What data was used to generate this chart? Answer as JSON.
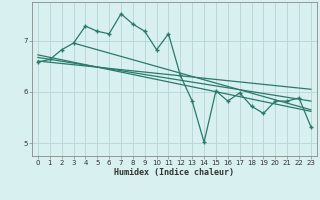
{
  "xlabel": "Humidex (Indice chaleur)",
  "bg_color": "#d8f0f0",
  "grid_color": "#b8d4d4",
  "line_color": "#2a7a6a",
  "xlim": [
    -0.5,
    23.5
  ],
  "ylim": [
    4.75,
    7.75
  ],
  "xticks": [
    0,
    1,
    2,
    3,
    4,
    5,
    6,
    7,
    8,
    9,
    10,
    11,
    12,
    13,
    14,
    15,
    16,
    17,
    18,
    19,
    20,
    21,
    22,
    23
  ],
  "yticks": [
    5,
    6,
    7
  ],
  "zigzag_x": [
    0,
    1,
    2,
    3,
    4,
    5,
    6,
    7,
    8,
    9,
    10,
    11,
    12,
    13,
    14,
    15,
    16,
    17,
    18,
    19,
    20,
    21,
    22,
    23
  ],
  "zigzag_y": [
    6.58,
    6.63,
    6.82,
    6.95,
    7.28,
    7.18,
    7.13,
    7.52,
    7.32,
    7.18,
    6.82,
    7.13,
    6.32,
    5.82,
    5.02,
    6.02,
    5.82,
    5.98,
    5.72,
    5.58,
    5.82,
    5.82,
    5.88,
    5.32
  ],
  "line1_x": [
    0,
    23
  ],
  "line1_y": [
    6.72,
    5.62
  ],
  "line2_x": [
    0,
    23
  ],
  "line2_y": [
    6.67,
    5.82
  ],
  "line3_x": [
    0,
    23
  ],
  "line3_y": [
    6.6,
    6.05
  ],
  "line4_x": [
    3,
    23
  ],
  "line4_y": [
    6.95,
    5.65
  ]
}
